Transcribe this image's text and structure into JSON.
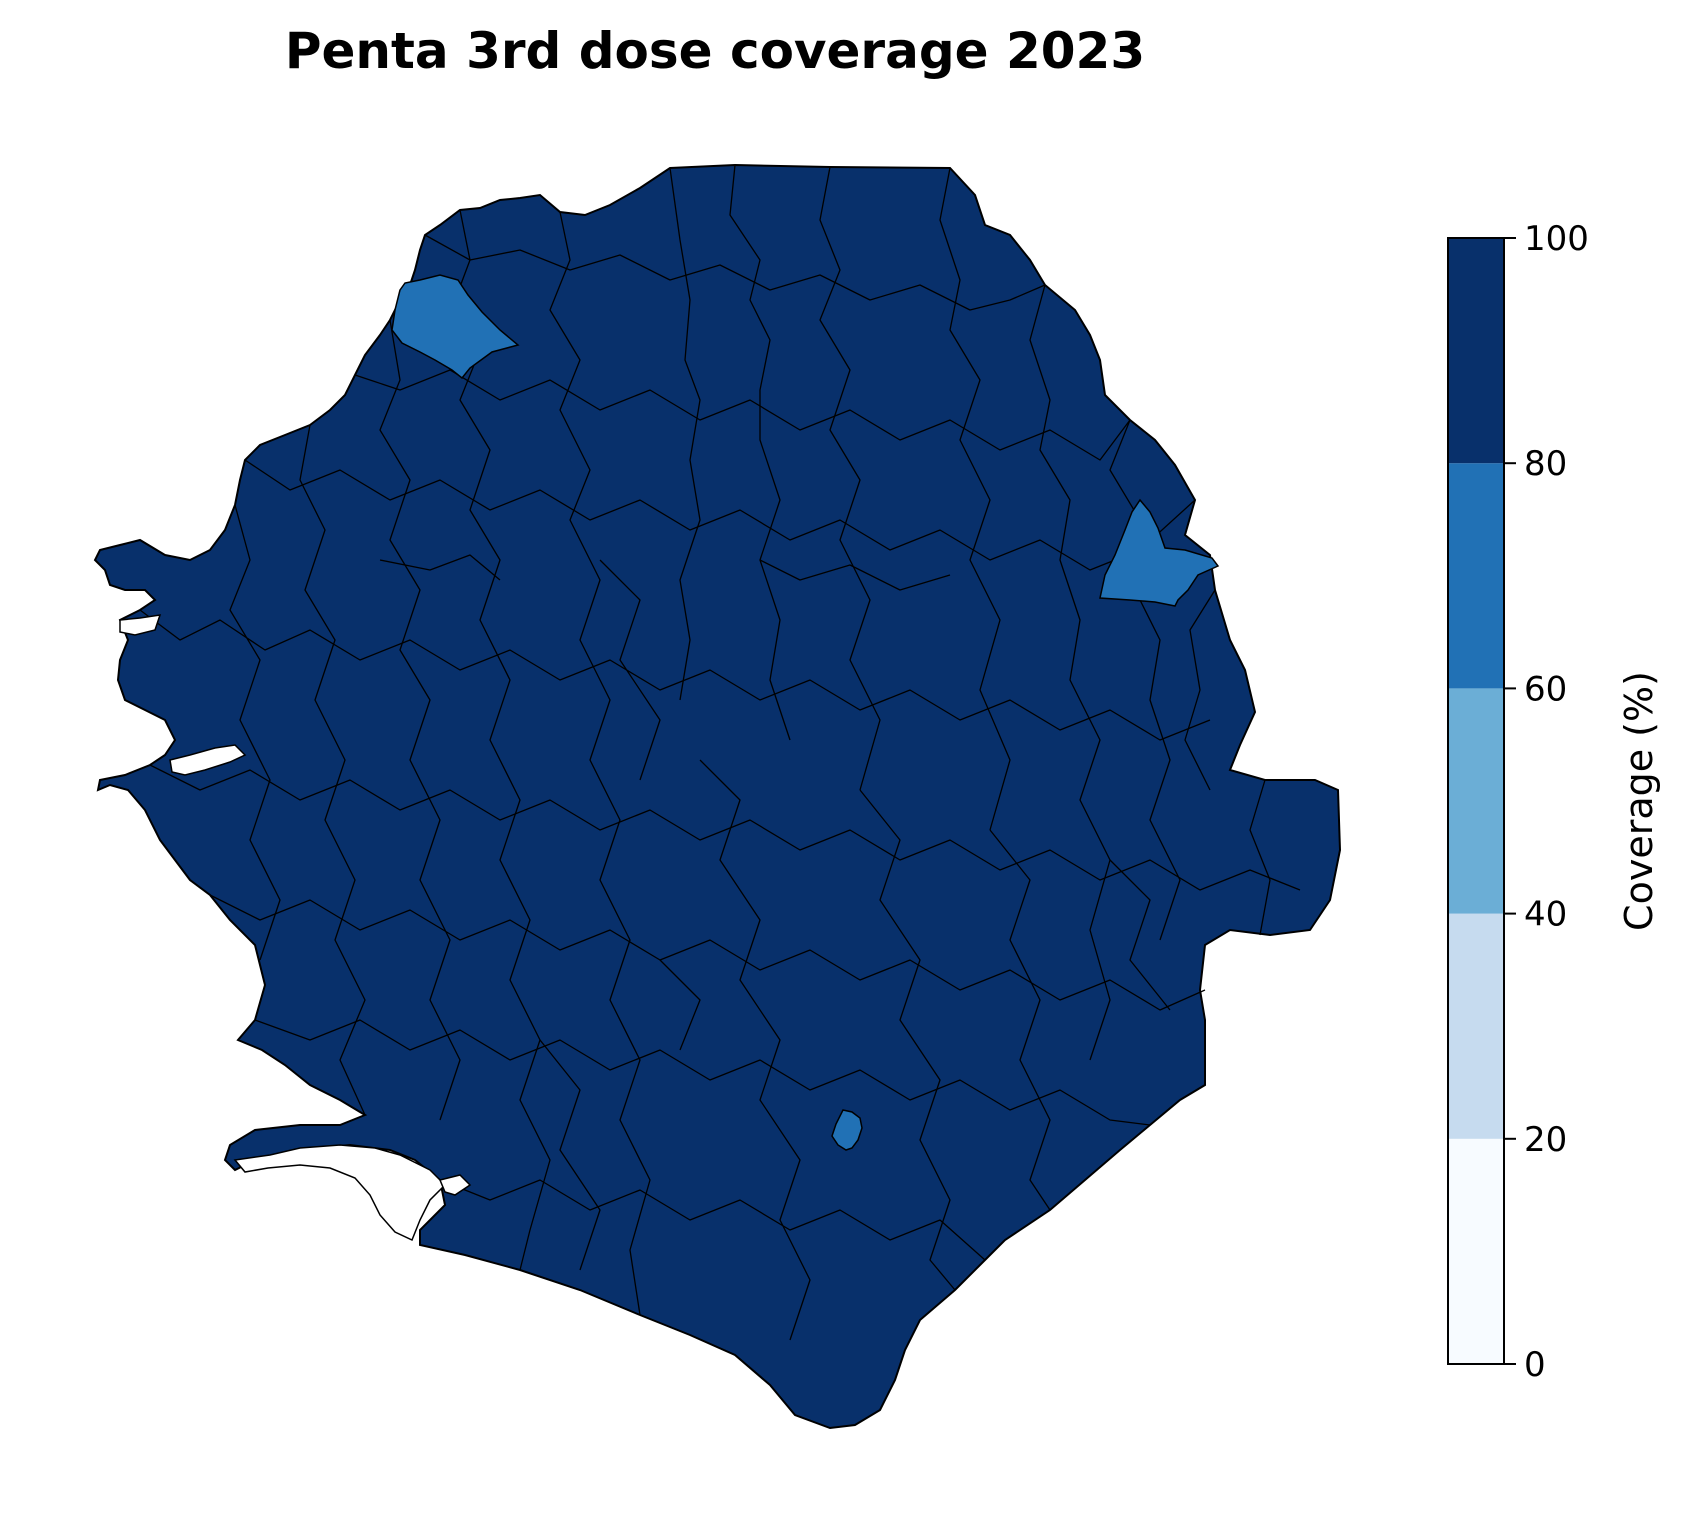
{
  "title": "Penta 3rd dose coverage 2023",
  "colorbar": {
    "label": "Coverage (%)",
    "ticks": [
      "0",
      "20",
      "40",
      "60",
      "80",
      "100"
    ],
    "bins": [
      {
        "min": 0,
        "max": 20,
        "color": "#f7fbff"
      },
      {
        "min": 20,
        "max": 40,
        "color": "#c6dbef"
      },
      {
        "min": 40,
        "max": 60,
        "color": "#6baed6"
      },
      {
        "min": 60,
        "max": 80,
        "color": "#2171b5"
      },
      {
        "min": 80,
        "max": 100,
        "color": "#08306b"
      }
    ]
  },
  "map": {
    "dominant_coverage_bin": "80-100",
    "dominant_color": "#08306b",
    "highlighted_regions": [
      {
        "position": "north-west border",
        "coverage_bin": "60-80",
        "color": "#2171b5"
      },
      {
        "position": "north-east border",
        "coverage_bin": "60-80",
        "color": "#2171b5"
      },
      {
        "position": "south-central",
        "coverage_bin": "60-80",
        "color": "#2171b5"
      }
    ]
  }
}
